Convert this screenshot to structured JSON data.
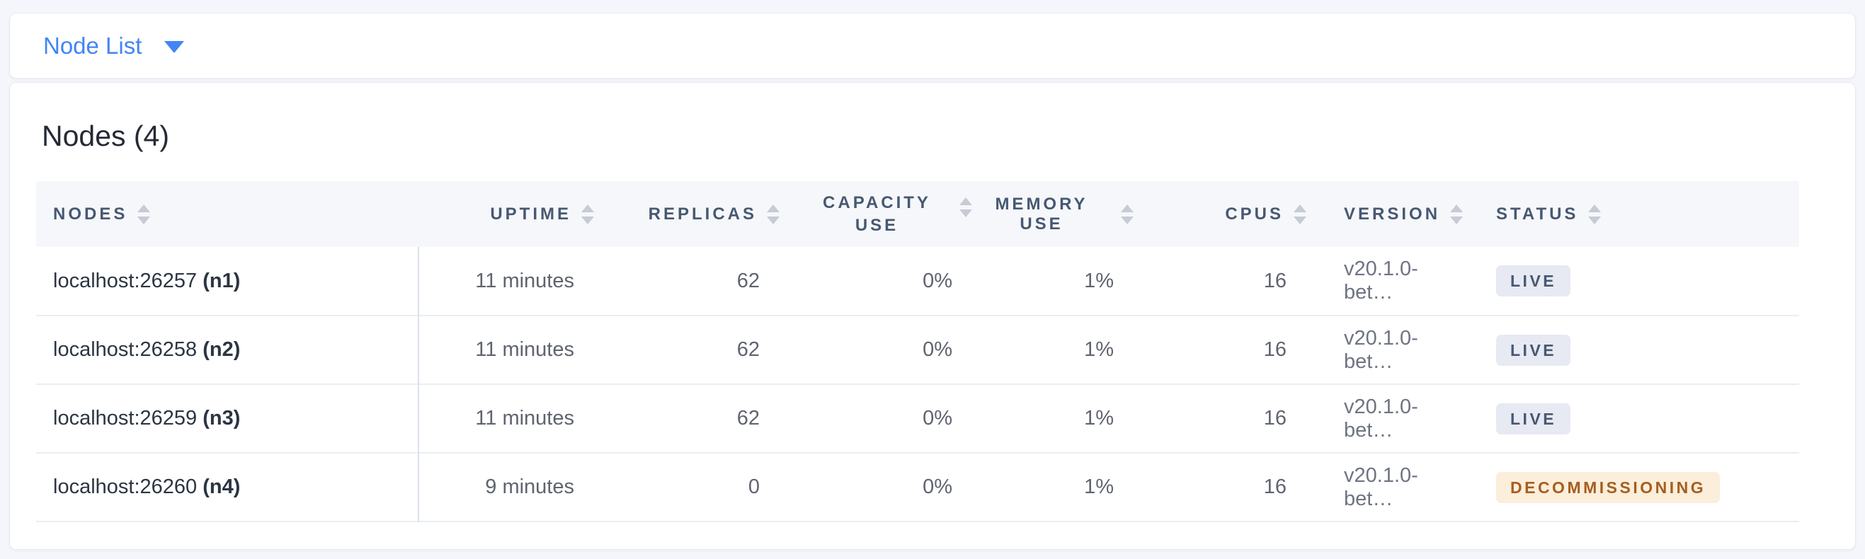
{
  "view_selector": {
    "label": "Node List",
    "icon": "caret-down-icon"
  },
  "panel": {
    "title": "Nodes (4)"
  },
  "table": {
    "columns": [
      {
        "key": "nodes",
        "label": "NODES",
        "align": "left"
      },
      {
        "key": "uptime",
        "label": "UPTIME",
        "align": "right"
      },
      {
        "key": "replicas",
        "label": "REPLICAS",
        "align": "right"
      },
      {
        "key": "capacity_use",
        "label": "CAPACITY USE",
        "align": "right"
      },
      {
        "key": "memory_use",
        "label": "MEMORY USE",
        "align": "right"
      },
      {
        "key": "cpus",
        "label": "CPUS",
        "align": "right"
      },
      {
        "key": "version",
        "label": "VERSION",
        "align": "left"
      },
      {
        "key": "status",
        "label": "STATUS",
        "align": "left"
      }
    ],
    "sort_icon": "sort-up-down-arrows",
    "rows": [
      {
        "node_address": "localhost:26257",
        "node_id": "(n1)",
        "uptime": "11 minutes",
        "replicas": "62",
        "capacity_use": "0%",
        "memory_use": "1%",
        "cpus": "16",
        "version": "v20.1.0-bet…",
        "status": "LIVE",
        "status_type": "live"
      },
      {
        "node_address": "localhost:26258",
        "node_id": "(n2)",
        "uptime": "11 minutes",
        "replicas": "62",
        "capacity_use": "0%",
        "memory_use": "1%",
        "cpus": "16",
        "version": "v20.1.0-bet…",
        "status": "LIVE",
        "status_type": "live"
      },
      {
        "node_address": "localhost:26259",
        "node_id": "(n3)",
        "uptime": "11 minutes",
        "replicas": "62",
        "capacity_use": "0%",
        "memory_use": "1%",
        "cpus": "16",
        "version": "v20.1.0-bet…",
        "status": "LIVE",
        "status_type": "live"
      },
      {
        "node_address": "localhost:26260",
        "node_id": "(n4)",
        "uptime": "9 minutes",
        "replicas": "0",
        "capacity_use": "0%",
        "memory_use": "1%",
        "cpus": "16",
        "version": "v20.1.0-bet…",
        "status": "DECOMMISSIONING",
        "status_type": "decommissioning"
      }
    ]
  },
  "colors": {
    "c_page_bg": "#F4F6FB",
    "c_card_border": "#E7EAF0",
    "c_accent_blue": "#4285F4",
    "c_header_bg": "#F5F7FA",
    "c_header_text": "#475872",
    "c_text_dark": "#242A35",
    "c_text_slate": "#2C3542",
    "c_text_gray": "#5F646E",
    "c_text_version": "#6E7482",
    "c_sort_arrow": "#C6CBD4",
    "c_row_border": "#E9EDF4",
    "c_divider": "#DCE1EA",
    "c_live_bg": "#E7EAF3",
    "c_live_text": "#475872",
    "c_decomm_bg": "#FBEEDA",
    "c_decomm_text": "#A55E20"
  }
}
